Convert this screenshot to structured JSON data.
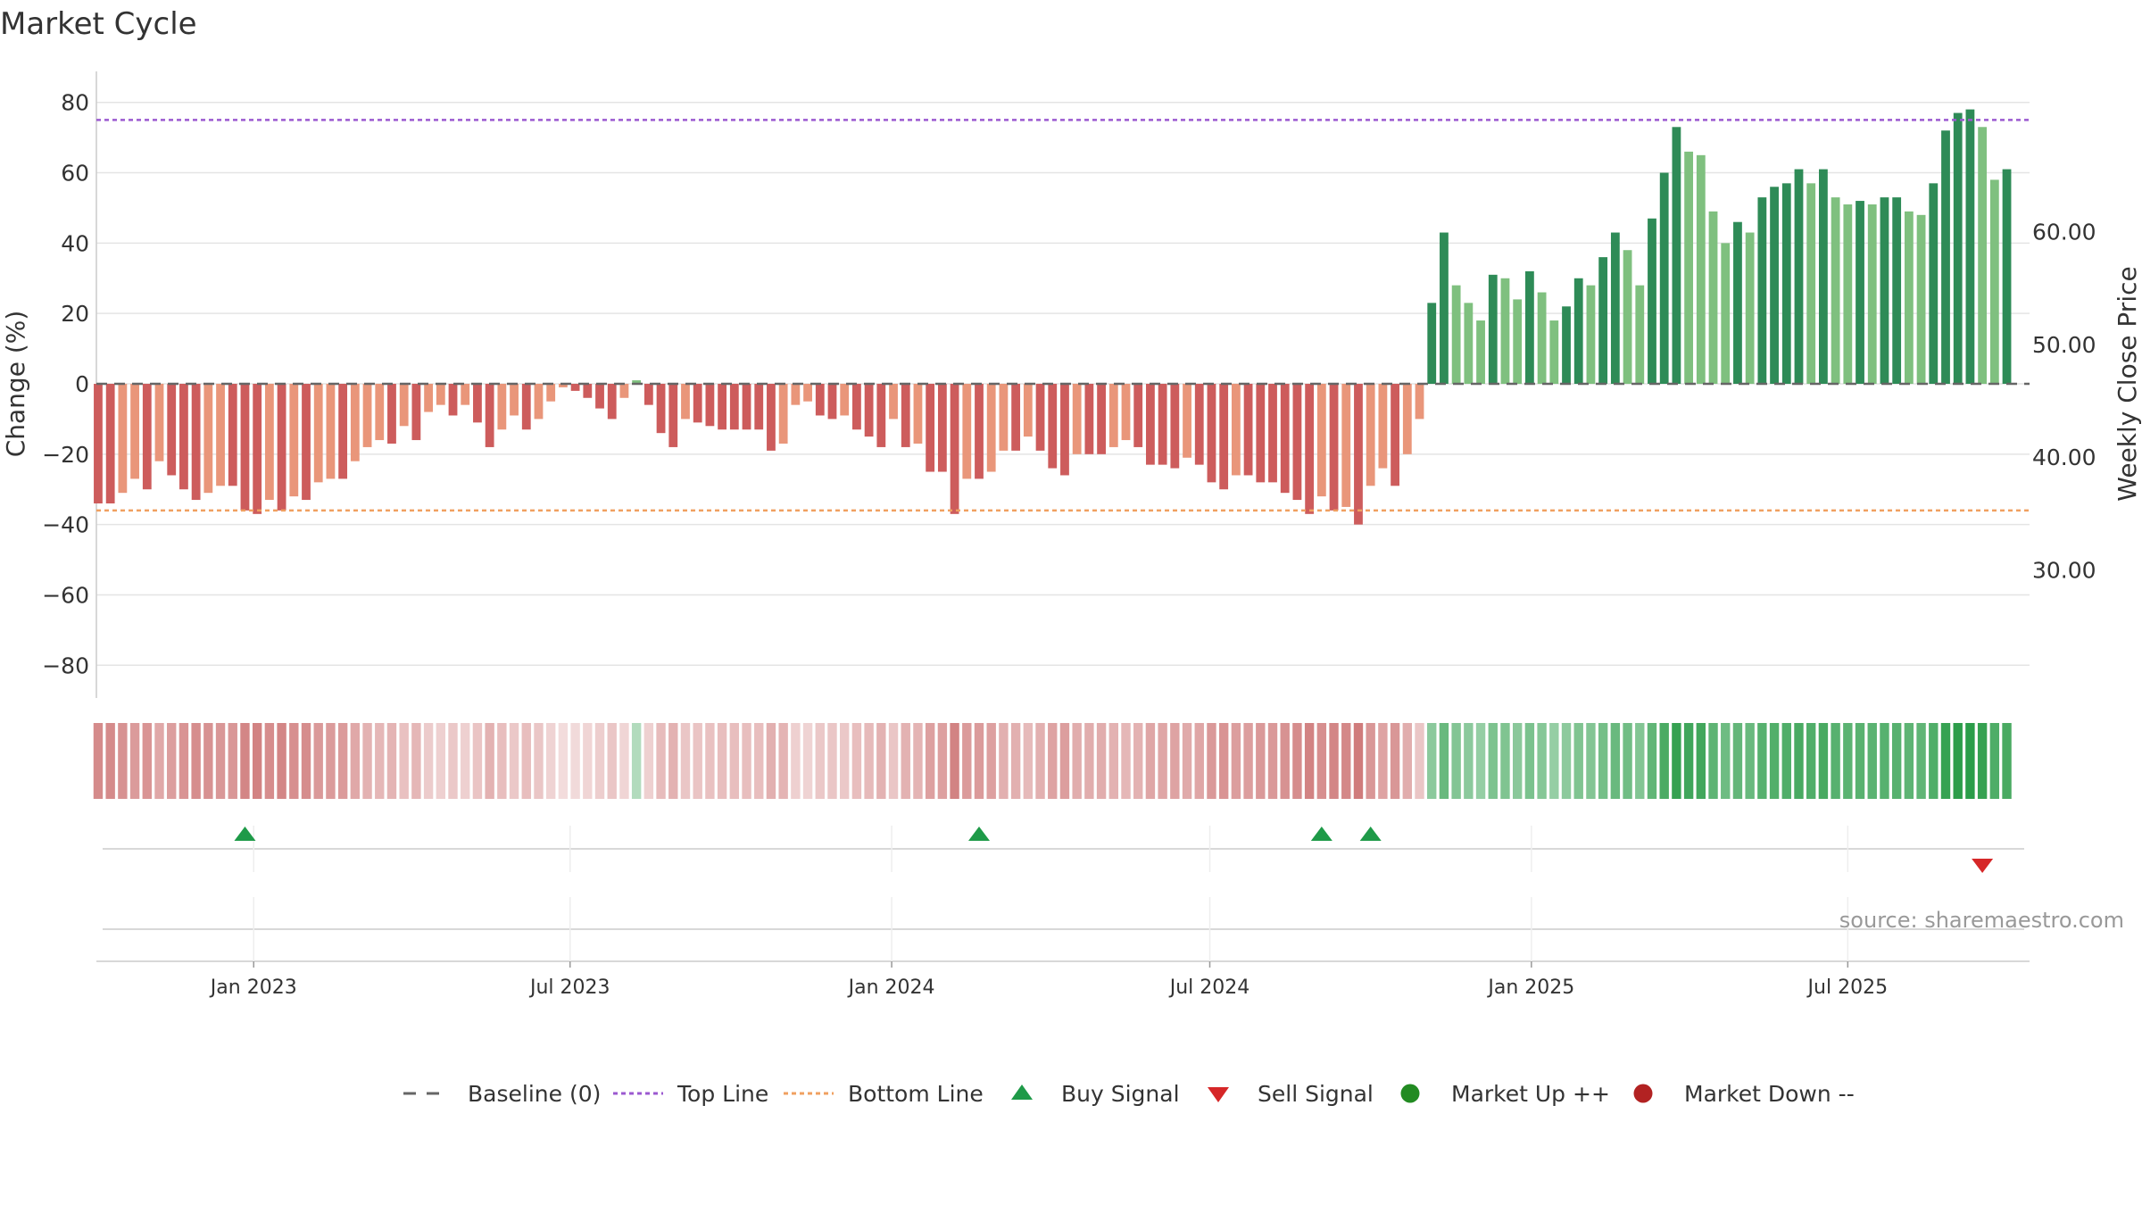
{
  "chart_data": {
    "type": "bar",
    "title": "Market Cycle",
    "ylabel": "Change (%)",
    "y2label": "Weekly Close Price",
    "ylim": [
      -85,
      85
    ],
    "yticks": [
      "80",
      "60",
      "40",
      "20",
      "0",
      "−20",
      "−40",
      "−60",
      "−80"
    ],
    "y2lim": [
      20,
      73
    ],
    "y2ticks": [
      "60.00",
      "50.00",
      "40.00",
      "30.00"
    ],
    "x_start": "2022-10-03",
    "x_end": "2025-10-13",
    "week_start": "2022-10-04",
    "xticks": [
      {
        "date": "2023-01-01",
        "label": "Jan 2023"
      },
      {
        "date": "2023-07-01",
        "label": "Jul 2023"
      },
      {
        "date": "2024-01-01",
        "label": "Jan 2024"
      },
      {
        "date": "2024-07-01",
        "label": "Jul 2024"
      },
      {
        "date": "2025-01-01",
        "label": "Jan 2025"
      },
      {
        "date": "2025-07-01",
        "label": "Jul 2025"
      }
    ],
    "top_line": 75,
    "bottom_line": -36,
    "values": [
      -34,
      -34,
      -31,
      -27,
      -30,
      -22,
      -26,
      -30,
      -33,
      -31,
      -29,
      -29,
      -36,
      -37,
      -33,
      -36,
      -32,
      -33,
      -28,
      -27,
      -27,
      -22,
      -18,
      -16,
      -17,
      -12,
      -16,
      -8,
      -6,
      -9,
      -6,
      -11,
      -18,
      -13,
      -9,
      -13,
      -10,
      -5,
      -1,
      -2,
      -4,
      -7,
      -10,
      -4,
      1,
      -6,
      -14,
      -18,
      -10,
      -11,
      -12,
      -13,
      -13,
      -13,
      -13,
      -19,
      -17,
      -6,
      -5,
      -9,
      -10,
      -9,
      -13,
      -15,
      -18,
      -10,
      -18,
      -17,
      -25,
      -25,
      -37,
      -27,
      -27,
      -25,
      -19,
      -19,
      -15,
      -19,
      -24,
      -26,
      -20,
      -20,
      -20,
      -18,
      -16,
      -18,
      -23,
      -23,
      -24,
      -21,
      -23,
      -28,
      -30,
      -26,
      -26,
      -28,
      -28,
      -31,
      -33,
      -37,
      -32,
      -36,
      -35,
      -40,
      -29,
      -24,
      -29,
      -20,
      -10,
      23,
      43,
      28,
      23,
      18,
      31,
      30,
      24,
      32,
      26,
      18,
      22,
      30,
      28,
      36,
      43,
      38,
      28,
      47,
      60,
      73,
      66,
      65,
      49,
      40,
      46,
      43,
      53,
      56,
      57,
      61,
      57,
      61,
      53,
      51,
      52,
      51,
      53,
      53,
      49,
      48,
      57,
      72,
      77,
      78,
      73,
      58,
      61
    ],
    "buy_signals": [
      "2022-12-27",
      "2024-02-20",
      "2024-09-03",
      "2024-10-01"
    ],
    "sell_signals": [
      "2025-09-16"
    ],
    "market_up_dates": [],
    "market_down_dates": [],
    "colors": {
      "neg_dark": "#cd5c5c",
      "neg_light": "#e9967a",
      "pos_dark": "#2e8b57",
      "pos_light": "#7fc07f",
      "top_line": "#9b59d0",
      "bottom_line": "#f0a060",
      "buy": "#1e9a48",
      "sell": "#d62728",
      "market_up": "#228b22",
      "market_down": "#b22222",
      "baseline": "#666666"
    },
    "legend": [
      {
        "label": "Baseline (0)",
        "icon": "dash-line-icon"
      },
      {
        "label": "Top Line",
        "icon": "dotted-line-icon"
      },
      {
        "label": "Bottom Line",
        "icon": "dotted-line-icon"
      },
      {
        "label": "Buy Signal",
        "icon": "triangle-up-icon"
      },
      {
        "label": "Sell Signal",
        "icon": "triangle-down-icon"
      },
      {
        "label": "Market Up ++",
        "icon": "circle-icon"
      },
      {
        "label": "Market Down --",
        "icon": "circle-icon"
      }
    ]
  },
  "source": "source: sharemaestro.com"
}
